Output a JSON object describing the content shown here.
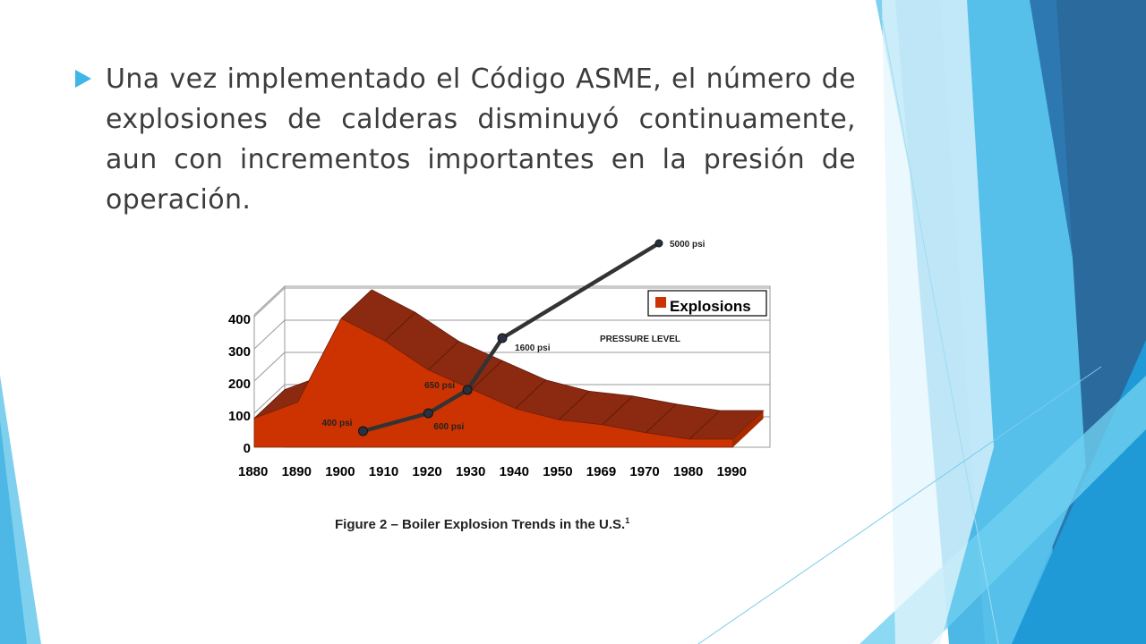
{
  "slide": {
    "bullet_text": "Una vez implementado el Código ASME, el número de explosiones de calderas disminuyó continuamente, aun con incrementos importantes en la presión de operación.",
    "caption": "Figure 2 – Boiler Explosion Trends in the U.S.",
    "caption_footnote": "1",
    "colors": {
      "bullet": "#3fb6e6",
      "explosions_fill": "#cc3300",
      "explosions_top": "#8b2a10",
      "pressure_line": "#333333"
    }
  },
  "chart_data": {
    "type": "area",
    "x": [
      "1880",
      "1890",
      "1900",
      "1910",
      "1920",
      "1930",
      "1940",
      "1950",
      "1969",
      "1970",
      "1980",
      "1990"
    ],
    "ylim": [
      0,
      400
    ],
    "y_ticks": [
      "0",
      "100",
      "200",
      "300",
      "400"
    ],
    "legend_label": "Explosions",
    "legend_position": "top-right",
    "pressure_label": "PRESSURE LEVEL",
    "grid": true,
    "series": [
      {
        "name": "Explosions",
        "type": "area",
        "values": [
          90,
          140,
          400,
          330,
          240,
          180,
          120,
          85,
          70,
          45,
          25,
          25
        ]
      }
    ],
    "pressure_series": {
      "type": "line",
      "points": [
        {
          "x": 1905,
          "label": "400 psi"
        },
        {
          "x": 1920,
          "label": "600 psi"
        },
        {
          "x": 1929,
          "label": "650 psi"
        },
        {
          "x": 1937,
          "label": "1600 psi"
        },
        {
          "x": 1973,
          "label": "5000 psi"
        }
      ]
    }
  }
}
